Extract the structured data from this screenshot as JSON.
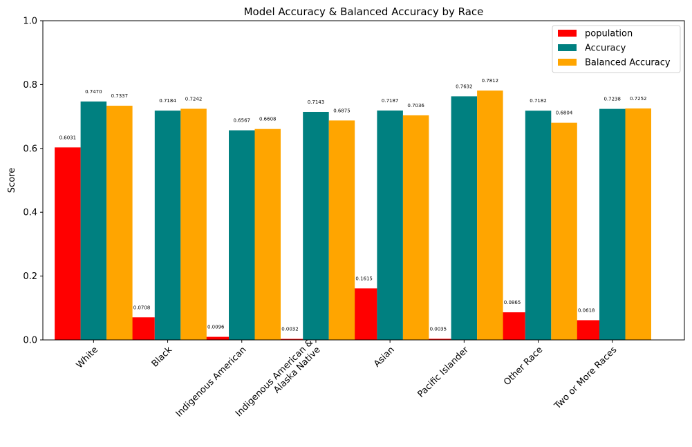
{
  "chart_data": {
    "type": "bar",
    "title": "Model Accuracy & Balanced Accuracy by Race",
    "ylabel": "Score",
    "xlabel": "",
    "ylim": [
      0,
      1.0
    ],
    "yticks": [
      "0.0",
      "0.2",
      "0.4",
      "0.6",
      "0.8",
      "1.0"
    ],
    "categories": [
      [
        "White"
      ],
      [
        "Black"
      ],
      [
        "Indigenous American"
      ],
      [
        "Indigenous American &",
        "Alaska Native"
      ],
      [
        "Asian"
      ],
      [
        "Pacific Islander"
      ],
      [
        "Other Race"
      ],
      [
        "Two or More Races"
      ]
    ],
    "series": [
      {
        "name": "population",
        "color": "#ff0000",
        "values": [
          0.6031,
          0.0708,
          0.0096,
          0.0032,
          0.1615,
          0.0035,
          0.0865,
          0.0618
        ],
        "labels": [
          "0.6031",
          "0.0708",
          "0.0096",
          "0.0032",
          "0.1615",
          "0.0035",
          "0.0865",
          "0.0618"
        ]
      },
      {
        "name": "Accuracy",
        "color": "#008080",
        "values": [
          0.747,
          0.7184,
          0.6567,
          0.7143,
          0.7187,
          0.7632,
          0.7182,
          0.7238
        ],
        "labels": [
          "0.7470",
          "0.7184",
          "0.6567",
          "0.7143",
          "0.7187",
          "0.7632",
          "0.7182",
          "0.7238"
        ]
      },
      {
        "name": "Balanced Accuracy",
        "color": "#ffa500",
        "values": [
          0.7337,
          0.7242,
          0.6608,
          0.6875,
          0.7036,
          0.7812,
          0.6804,
          0.7252
        ],
        "labels": [
          "0.7337",
          "0.7242",
          "0.6608",
          "0.6875",
          "0.7036",
          "0.7812",
          "0.6804",
          "0.7252"
        ]
      }
    ],
    "legend": "top-right",
    "grid": false
  }
}
